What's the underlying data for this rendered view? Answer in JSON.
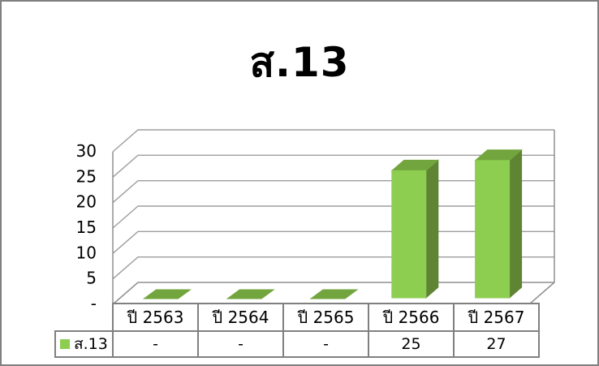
{
  "frame": {
    "background": "#FFFFFF",
    "border_color": "#808080"
  },
  "chart_data": {
    "type": "bar",
    "subtype": "3d-clustered-column",
    "title": "ส.13",
    "categories": [
      "ปี 2563",
      "ปี 2564",
      "ปี 2565",
      "ปี 2566",
      "ปี 2567"
    ],
    "series": [
      {
        "name": "ส.13",
        "values": [
          0,
          0,
          0,
          25,
          27
        ],
        "display_values": [
          "-",
          "-",
          "-",
          "25",
          "27"
        ],
        "color_front": "#8DCE51",
        "color_top": "#72A53E",
        "color_side": "#5F8433"
      }
    ],
    "ylim": [
      0,
      30
    ],
    "ytick_interval": 5,
    "ytick_labels": [
      "-",
      "5",
      "10",
      "15",
      "20",
      "25",
      "30"
    ],
    "grid": true,
    "gridline_color": "#9E9E9E",
    "axis_color": "#8F8F8F",
    "legend_position": "data-table"
  }
}
